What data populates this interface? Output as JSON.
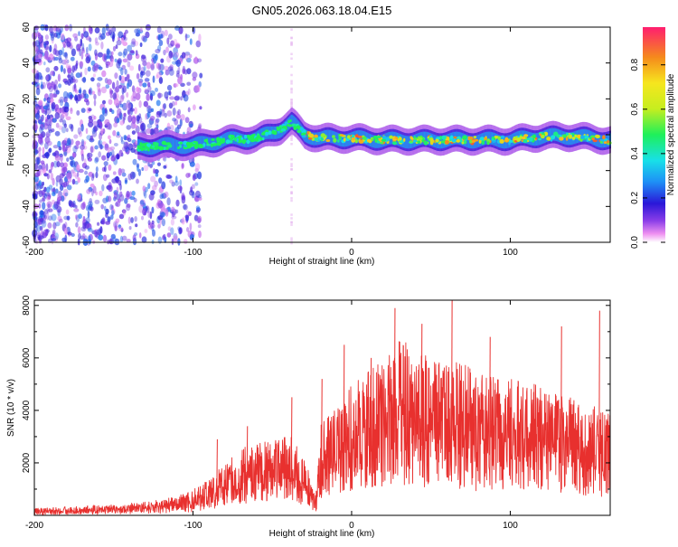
{
  "figure": {
    "title": "GN05.2026.063.18.04.E15"
  },
  "colors": {
    "axis": "#000000",
    "snr_line": "#e8302e",
    "background": "#ffffff"
  },
  "chart_data": [
    {
      "type": "heatmap",
      "xlabel": "Height of straight line (km)",
      "ylabel": "Frequency (Hz)",
      "xlim": [
        -200,
        163
      ],
      "ylim": [
        -60,
        60
      ],
      "xticks": [
        -200,
        -100,
        0,
        100
      ],
      "yticks": [
        60,
        40,
        20,
        0,
        -20,
        -40,
        -60
      ],
      "colorbar": {
        "label": "Normalized spectral amplitude",
        "range": [
          0.0,
          0.97
        ],
        "ticks": [
          0.0,
          0.2,
          0.4,
          0.6,
          0.8
        ],
        "colormap": "rainbow"
      },
      "ridge": {
        "x": [
          -135,
          -120,
          -100,
          -80,
          -60,
          -45,
          -38,
          -30,
          -20,
          0,
          20,
          40,
          60,
          80,
          100,
          120,
          140,
          163
        ],
        "y": [
          -7,
          -6,
          -6,
          -3,
          -2,
          3,
          7,
          0,
          -2,
          -2,
          -3,
          -3,
          -3,
          -3,
          -3,
          -1,
          -1,
          -3
        ]
      }
    },
    {
      "type": "line",
      "xlabel": "Height of straight line (km)",
      "ylabel": "SNR (10 * v/v)",
      "xlim": [
        -200,
        163
      ],
      "ylim": [
        0,
        8200
      ],
      "xticks": [
        -200,
        -100,
        0,
        100
      ],
      "yticks": [
        2000,
        4000,
        6000,
        8000
      ],
      "envelope": {
        "x": [
          -200,
          -150,
          -120,
          -100,
          -90,
          -80,
          -70,
          -60,
          -50,
          -40,
          -30,
          -22,
          -20,
          -10,
          0,
          10,
          20,
          30,
          40,
          50,
          60,
          70,
          80,
          100,
          120,
          140,
          163
        ],
        "y": [
          200,
          250,
          400,
          700,
          1000,
          1400,
          1800,
          2000,
          2100,
          2300,
          1500,
          600,
          2500,
          3000,
          3500,
          4000,
          4200,
          4800,
          4500,
          4300,
          4300,
          4100,
          3900,
          3700,
          3500,
          3200,
          2800
        ]
      },
      "peaks": [
        {
          "x": -85,
          "y": 2900
        },
        {
          "x": -66,
          "y": 3400
        },
        {
          "x": -38,
          "y": 4500
        },
        {
          "x": -19,
          "y": 5200
        },
        {
          "x": -5,
          "y": 6500
        },
        {
          "x": 12,
          "y": 6000
        },
        {
          "x": 27,
          "y": 7900
        },
        {
          "x": 44,
          "y": 7300
        },
        {
          "x": 63,
          "y": 8200
        },
        {
          "x": 87,
          "y": 6800
        },
        {
          "x": 132,
          "y": 7200
        },
        {
          "x": 156,
          "y": 7800
        }
      ]
    }
  ]
}
